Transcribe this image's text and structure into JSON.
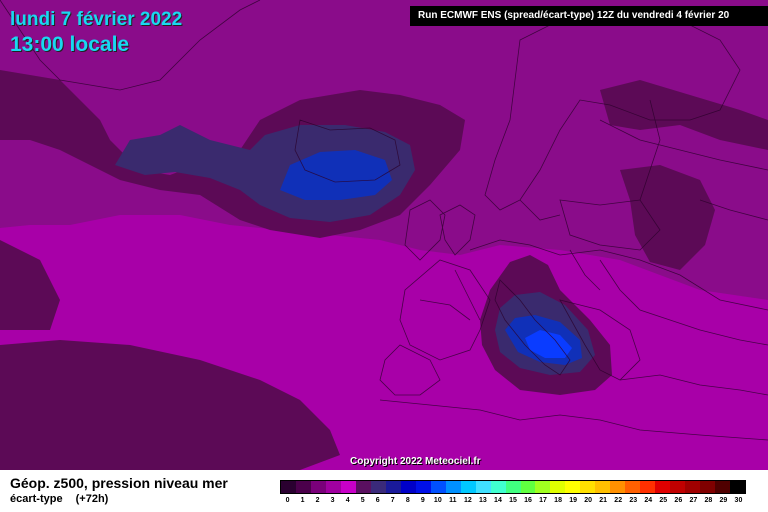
{
  "header": {
    "date": "lundi 7 février 2022",
    "time": "13:00 locale",
    "run_info": "Run ECMWF ENS (spread/écart-type) 12Z du vendredi 4 février 20"
  },
  "copyright": "Copyright 2022 Meteociel.fr",
  "footer": {
    "parameter": "Géop. z500, pression niveau mer",
    "field": "écart-type",
    "lead": "(+72h)"
  },
  "scale": {
    "ticks": [
      "0",
      "1",
      "2",
      "3",
      "4",
      "5",
      "6",
      "7",
      "8",
      "9",
      "10",
      "11",
      "12",
      "13",
      "14",
      "15",
      "16",
      "17",
      "18",
      "19",
      "20",
      "21",
      "22",
      "23",
      "24",
      "25",
      "26",
      "27",
      "28",
      "29",
      "30"
    ],
    "colors": [
      "#2a0030",
      "#4b004b",
      "#7a007a",
      "#a000a0",
      "#c800c8",
      "#5a1060",
      "#3a2a7a",
      "#1a1a9a",
      "#0000c8",
      "#0010e8",
      "#0050ff",
      "#0090ff",
      "#00c8ff",
      "#40e0ff",
      "#40ffd0",
      "#40ff80",
      "#60ff40",
      "#a0ff20",
      "#e0ff00",
      "#ffff00",
      "#ffe000",
      "#ffc000",
      "#ff9000",
      "#ff6000",
      "#ff3000",
      "#e00000",
      "#c00000",
      "#a00000",
      "#800000",
      "#500000",
      "#000000"
    ]
  },
  "map_colors": {
    "land_bg": "#a800a8",
    "light": "#c000c0",
    "mid": "#8a0c8a",
    "dark": "#5c0a56",
    "navy": "#3a2a6e",
    "blue": "#1030b8",
    "bright_blue": "#0a3cff",
    "borders": "#2a002a"
  }
}
